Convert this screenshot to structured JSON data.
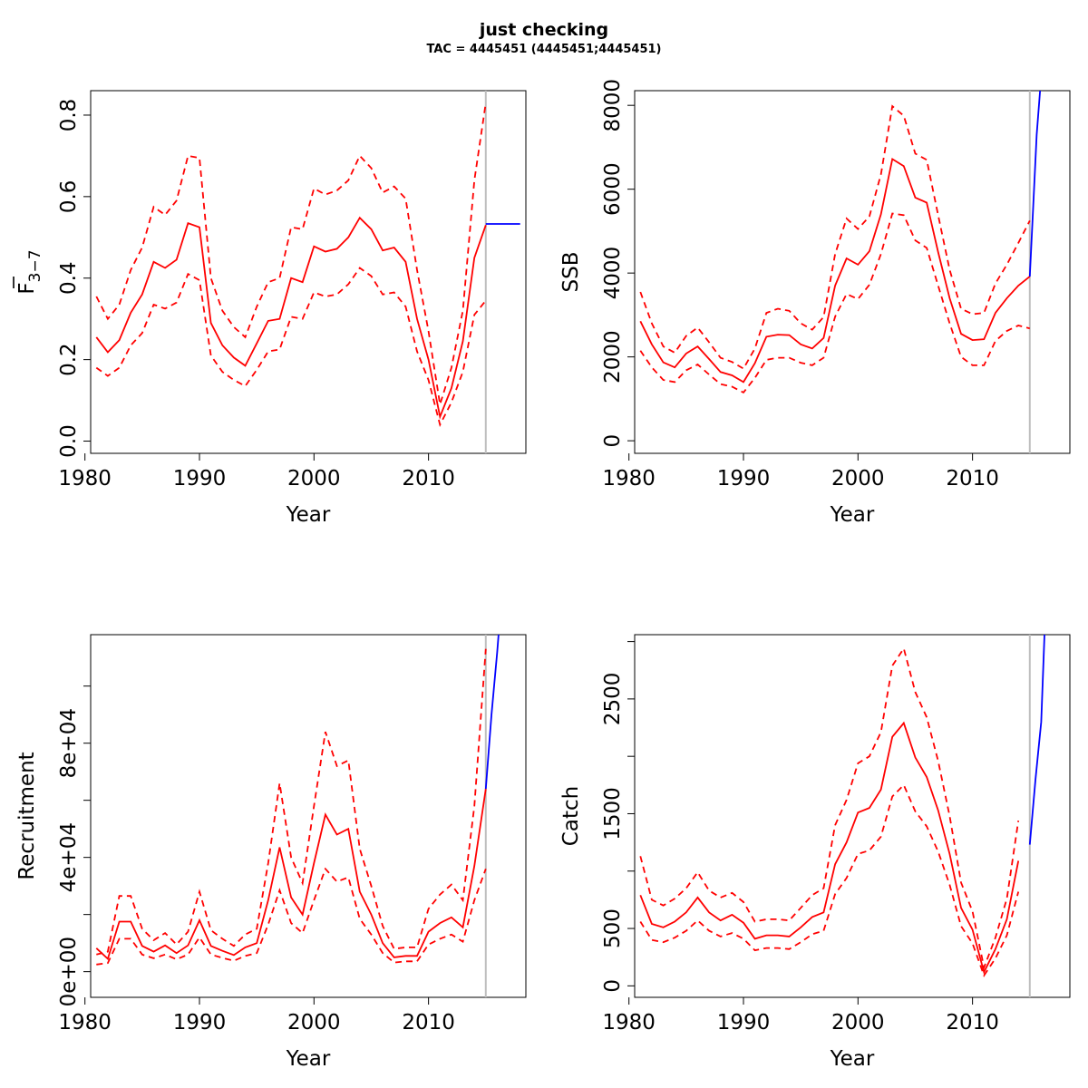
{
  "title": "just checking",
  "subtitle": "TAC = 4445451 (4445451;4445451)",
  "colors": {
    "estimate": "#ff0000",
    "forecast": "#0000ff",
    "ref_line": "#bebebe",
    "axis": "#000000"
  },
  "chart_data": [
    {
      "type": "line",
      "ylabel": "F",
      "ylabel_sub": "3−7",
      "xlabel": "Year",
      "xlim": [
        1980.5,
        2018.5
      ],
      "ylim": [
        -0.03,
        0.86
      ],
      "xticks": [
        "1980",
        "1990",
        "2000",
        "2010"
      ],
      "yticks": [
        "0.0",
        "0.2",
        "0.4",
        "0.6",
        "0.8"
      ],
      "yticks_values": [
        0,
        0.2,
        0.4,
        0.6,
        0.8
      ],
      "vline": 2015,
      "series": [
        {
          "kind": "estimate",
          "x": [
            1981,
            1982,
            1983,
            1984,
            1985,
            1986,
            1987,
            1988,
            1989,
            1990,
            1991,
            1992,
            1993,
            1994,
            1995,
            1996,
            1997,
            1998,
            1999,
            2000,
            2001,
            2002,
            2003,
            2004,
            2005,
            2006,
            2007,
            2008,
            2009,
            2010,
            2011,
            2012,
            2013,
            2014,
            2015
          ],
          "y": [
            0.255,
            0.218,
            0.248,
            0.315,
            0.36,
            0.44,
            0.425,
            0.445,
            0.535,
            0.525,
            0.29,
            0.235,
            0.205,
            0.185,
            0.24,
            0.295,
            0.3,
            0.4,
            0.39,
            0.478,
            0.465,
            0.472,
            0.5,
            0.548,
            0.52,
            0.468,
            0.475,
            0.44,
            0.3,
            0.2,
            0.06,
            0.13,
            0.245,
            0.45,
            0.53
          ]
        },
        {
          "kind": "upper",
          "x": [
            1981,
            1982,
            1983,
            1984,
            1985,
            1986,
            1987,
            1988,
            1989,
            1990,
            1991,
            1992,
            1993,
            1994,
            1995,
            1996,
            1997,
            1998,
            1999,
            2000,
            2001,
            2002,
            2003,
            2004,
            2005,
            2006,
            2007,
            2008,
            2009,
            2010,
            2011,
            2012,
            2013,
            2014,
            2015
          ],
          "y": [
            0.355,
            0.3,
            0.335,
            0.42,
            0.475,
            0.575,
            0.555,
            0.59,
            0.7,
            0.695,
            0.4,
            0.32,
            0.28,
            0.255,
            0.33,
            0.39,
            0.4,
            0.525,
            0.52,
            0.62,
            0.605,
            0.615,
            0.64,
            0.7,
            0.67,
            0.61,
            0.625,
            0.595,
            0.42,
            0.27,
            0.09,
            0.18,
            0.32,
            0.64,
            0.83
          ]
        },
        {
          "kind": "lower",
          "x": [
            1981,
            1982,
            1983,
            1984,
            1985,
            1986,
            1987,
            1988,
            1989,
            1990,
            1991,
            1992,
            1993,
            1994,
            1995,
            1996,
            1997,
            1998,
            1999,
            2000,
            2001,
            2002,
            2003,
            2004,
            2005,
            2006,
            2007,
            2008,
            2009,
            2010,
            2011,
            2012,
            2013,
            2014,
            2015
          ],
          "y": [
            0.18,
            0.16,
            0.18,
            0.235,
            0.265,
            0.335,
            0.325,
            0.34,
            0.41,
            0.395,
            0.21,
            0.17,
            0.15,
            0.135,
            0.175,
            0.22,
            0.225,
            0.305,
            0.3,
            0.365,
            0.355,
            0.36,
            0.385,
            0.425,
            0.405,
            0.36,
            0.365,
            0.33,
            0.22,
            0.15,
            0.04,
            0.095,
            0.17,
            0.31,
            0.345
          ]
        },
        {
          "kind": "forecast",
          "x": [
            2015,
            2016,
            2017,
            2018
          ],
          "y": [
            0.533,
            0.533,
            0.533,
            0.533
          ]
        }
      ]
    },
    {
      "type": "line",
      "ylabel": "SSB",
      "xlabel": "Year",
      "xlim": [
        1980.5,
        2018.5
      ],
      "ylim": [
        -300,
        8350
      ],
      "xticks": [
        "1980",
        "1990",
        "2000",
        "2010"
      ],
      "yticks": [
        "0",
        "2000",
        "4000",
        "6000",
        "8000"
      ],
      "yticks_values": [
        0,
        2000,
        4000,
        6000,
        8000
      ],
      "vline": 2015,
      "series": [
        {
          "kind": "estimate",
          "x": [
            1981,
            1982,
            1983,
            1984,
            1985,
            1986,
            1987,
            1988,
            1989,
            1990,
            1991,
            1992,
            1993,
            1994,
            1995,
            1996,
            1997,
            1998,
            1999,
            2000,
            2001,
            2002,
            2003,
            2004,
            2005,
            2006,
            2007,
            2008,
            2009,
            2010,
            2011,
            2012,
            2013,
            2014,
            2015
          ],
          "y": [
            2850,
            2300,
            1870,
            1750,
            2080,
            2250,
            1950,
            1640,
            1560,
            1400,
            1850,
            2480,
            2530,
            2520,
            2300,
            2200,
            2450,
            3700,
            4350,
            4200,
            4520,
            5400,
            6720,
            6550,
            5800,
            5680,
            4500,
            3400,
            2550,
            2400,
            2420,
            3050,
            3400,
            3700,
            3920
          ]
        },
        {
          "kind": "upper",
          "x": [
            1981,
            1982,
            1983,
            1984,
            1985,
            1986,
            1987,
            1988,
            1989,
            1990,
            1991,
            1992,
            1993,
            1994,
            1995,
            1996,
            1997,
            1998,
            1999,
            2000,
            2001,
            2002,
            2003,
            2004,
            2005,
            2006,
            2007,
            2008,
            2009,
            2010,
            2011,
            2012,
            2013,
            2014,
            2015
          ],
          "y": [
            3550,
            2800,
            2250,
            2100,
            2500,
            2700,
            2350,
            1980,
            1880,
            1720,
            2200,
            3050,
            3150,
            3100,
            2800,
            2650,
            2950,
            4450,
            5300,
            5050,
            5350,
            6350,
            7980,
            7750,
            6850,
            6700,
            5380,
            4080,
            3150,
            3020,
            3050,
            3750,
            4200,
            4720,
            5250
          ]
        },
        {
          "kind": "lower",
          "x": [
            1981,
            1982,
            1983,
            1984,
            1985,
            1986,
            1987,
            1988,
            1989,
            1990,
            1991,
            1992,
            1993,
            1994,
            1995,
            1996,
            1997,
            1998,
            1999,
            2000,
            2001,
            2002,
            2003,
            2004,
            2005,
            2006,
            2007,
            2008,
            2009,
            2010,
            2011,
            2012,
            2013,
            2014,
            2015
          ],
          "y": [
            2150,
            1750,
            1450,
            1400,
            1680,
            1820,
            1580,
            1350,
            1290,
            1150,
            1500,
            1930,
            1980,
            1980,
            1860,
            1800,
            1980,
            2960,
            3500,
            3380,
            3720,
            4450,
            5420,
            5380,
            4780,
            4600,
            3700,
            2800,
            2000,
            1800,
            1800,
            2380,
            2620,
            2750,
            2680
          ]
        },
        {
          "kind": "forecast",
          "x": [
            2015,
            2015.3,
            2015.6,
            2016
          ],
          "y": [
            3920,
            5600,
            7300,
            8700
          ]
        }
      ]
    },
    {
      "type": "line",
      "ylabel": "Recruitment",
      "xlabel": "Year",
      "xlim": [
        1980.5,
        2018.5
      ],
      "ylim": [
        -9000,
        118000
      ],
      "xticks": [
        "1980",
        "1990",
        "2000",
        "2010"
      ],
      "yticks": [
        "0e+00",
        "4e+04",
        "8e+04"
      ],
      "yticks_values": [
        0,
        40000,
        80000
      ],
      "yticks_minor": [
        20000,
        60000,
        100000
      ],
      "vline": 2015,
      "series": [
        {
          "kind": "estimate",
          "x": [
            1981,
            1982,
            1983,
            1984,
            1985,
            1986,
            1987,
            1988,
            1989,
            1990,
            1991,
            1992,
            1993,
            1994,
            1995,
            1996,
            1997,
            1998,
            1999,
            2000,
            2001,
            2002,
            2003,
            2004,
            2005,
            2006,
            2007,
            2008,
            2009,
            2010,
            2011,
            2012,
            2013,
            2014,
            2015
          ],
          "y": [
            8200,
            4500,
            17500,
            17500,
            9000,
            7000,
            9200,
            6500,
            9200,
            18000,
            9000,
            7300,
            5800,
            8500,
            10000,
            25000,
            43500,
            26000,
            20000,
            38000,
            55000,
            48000,
            50000,
            28000,
            20000,
            10000,
            5000,
            5500,
            5500,
            14000,
            17000,
            19000,
            15500,
            37000,
            64000
          ]
        },
        {
          "kind": "upper",
          "x": [
            1981,
            1982,
            1983,
            1984,
            1985,
            1986,
            1987,
            1988,
            1989,
            1990,
            1991,
            1992,
            1993,
            1994,
            1995,
            1996,
            1997,
            1998,
            1999,
            2000,
            2001,
            2002,
            2003,
            2004,
            2005,
            2006,
            2007,
            2008,
            2009,
            2010,
            2011,
            2012,
            2013,
            2014,
            2015
          ],
          "y": [
            6000,
            7000,
            26500,
            26500,
            15000,
            11000,
            13500,
            9500,
            14000,
            28000,
            14500,
            11500,
            9000,
            13000,
            15000,
            38000,
            66000,
            40000,
            31000,
            58000,
            84000,
            72000,
            74000,
            43000,
            30000,
            16000,
            8000,
            8500,
            8500,
            22000,
            27000,
            30500,
            25000,
            58000,
            113000
          ]
        },
        {
          "kind": "lower",
          "x": [
            1981,
            1982,
            1983,
            1984,
            1985,
            1986,
            1987,
            1988,
            1989,
            1990,
            1991,
            1992,
            1993,
            1994,
            1995,
            1996,
            1997,
            1998,
            1999,
            2000,
            2001,
            2002,
            2003,
            2004,
            2005,
            2006,
            2007,
            2008,
            2009,
            2010,
            2011,
            2012,
            2013,
            2014,
            2015
          ],
          "y": [
            2500,
            3000,
            11500,
            11500,
            6000,
            4700,
            6000,
            4300,
            6000,
            12000,
            6000,
            4800,
            3800,
            5500,
            6500,
            16500,
            28500,
            17000,
            13500,
            25000,
            36000,
            31500,
            33000,
            18500,
            13000,
            6500,
            3200,
            3600,
            3600,
            9500,
            11500,
            13000,
            10500,
            25000,
            36000
          ]
        },
        {
          "kind": "forecast",
          "x": [
            2015,
            2015.5,
            2016,
            2016.2
          ],
          "y": [
            64000,
            90000,
            112000,
            122000
          ]
        }
      ]
    },
    {
      "type": "line",
      "ylabel": "Catch",
      "xlabel": "Year",
      "xlim": [
        1980.5,
        2018.5
      ],
      "ylim": [
        -100,
        3060
      ],
      "xticks": [
        "1980",
        "1990",
        "2000",
        "2010"
      ],
      "yticks": [
        "0",
        "500",
        "1500",
        "2500"
      ],
      "yticks_values": [
        0,
        500,
        1500,
        2500
      ],
      "yticks_minor": [
        1000,
        2000,
        3000
      ],
      "vline": 2015,
      "series": [
        {
          "kind": "estimate",
          "x": [
            1981,
            1982,
            1983,
            1984,
            1985,
            1986,
            1987,
            1988,
            1989,
            1990,
            1991,
            1992,
            1993,
            1994,
            1995,
            1996,
            1997,
            1998,
            1999,
            2000,
            2001,
            2002,
            2003,
            2004,
            2005,
            2006,
            2007,
            2008,
            2009,
            2010,
            2011,
            2012,
            2013,
            2014
          ],
          "y": [
            790,
            540,
            510,
            560,
            640,
            770,
            640,
            570,
            620,
            550,
            410,
            440,
            440,
            430,
            510,
            600,
            640,
            1060,
            1250,
            1510,
            1550,
            1710,
            2170,
            2290,
            1990,
            1820,
            1530,
            1150,
            680,
            490,
            120,
            320,
            580,
            1090
          ]
        },
        {
          "kind": "upper",
          "x": [
            1981,
            1982,
            1983,
            1984,
            1985,
            1986,
            1987,
            1988,
            1989,
            1990,
            1991,
            1992,
            1993,
            1994,
            1995,
            1996,
            1997,
            1998,
            1999,
            2000,
            2001,
            2002,
            2003,
            2004,
            2005,
            2006,
            2007,
            2008,
            2009,
            2010,
            2011,
            2012,
            2013,
            2014
          ],
          "y": [
            1130,
            750,
            700,
            760,
            850,
            990,
            830,
            770,
            810,
            730,
            560,
            580,
            580,
            570,
            680,
            790,
            850,
            1400,
            1620,
            1940,
            2000,
            2210,
            2790,
            2940,
            2560,
            2340,
            1960,
            1480,
            900,
            650,
            160,
            420,
            760,
            1440
          ]
        },
        {
          "kind": "lower",
          "x": [
            1981,
            1982,
            1983,
            1984,
            1985,
            1986,
            1987,
            1988,
            1989,
            1990,
            1991,
            1992,
            1993,
            1994,
            1995,
            1996,
            1997,
            1998,
            1999,
            2000,
            2001,
            2002,
            2003,
            2004,
            2005,
            2006,
            2007,
            2008,
            2009,
            2010,
            2011,
            2012,
            2013,
            2014
          ],
          "y": [
            560,
            400,
            380,
            420,
            480,
            570,
            480,
            430,
            460,
            410,
            310,
            330,
            330,
            320,
            380,
            450,
            480,
            800,
            940,
            1150,
            1180,
            1300,
            1650,
            1750,
            1520,
            1390,
            1170,
            880,
            520,
            370,
            90,
            240,
            440,
            820
          ]
        },
        {
          "kind": "forecast",
          "x": [
            2015,
            2015.5,
            2016,
            2016.3
          ],
          "y": [
            1230,
            1800,
            2300,
            3100
          ]
        }
      ]
    }
  ]
}
